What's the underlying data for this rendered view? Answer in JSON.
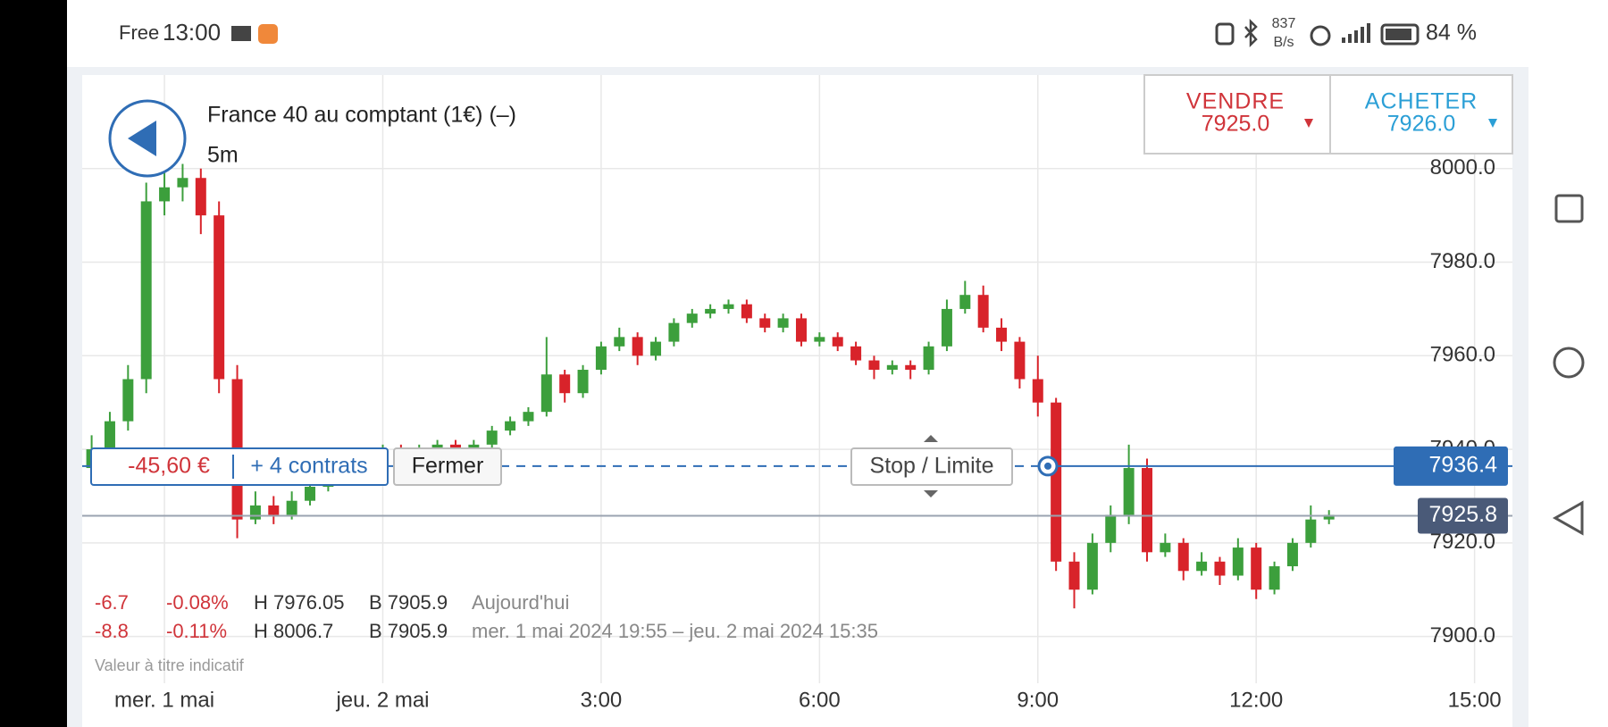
{
  "status_bar": {
    "carrier": "Free",
    "time": "13:00",
    "speed_value": "837",
    "speed_unit": "B/s",
    "battery": "84 %"
  },
  "trade_panel": {
    "sell_label": "VENDRE",
    "sell_price": "7925.0",
    "buy_label": "ACHETER",
    "buy_price": "7926.0"
  },
  "position": {
    "pnl": "-45,60 €",
    "contracts": "+ 4 contrats",
    "close_button": "Fermer",
    "stop_button": "Stop / Limite"
  },
  "summary": {
    "rows": [
      [
        "-6.7",
        "-0.08%",
        "H 7976.05",
        "B 7905.9",
        "Aujourd'hui"
      ],
      [
        "-8.8",
        "-0.11%",
        "H 8006.7",
        "B 7905.9",
        "mer. 1 mai 2024 19:55 – jeu. 2 mai 2024 15:35"
      ]
    ],
    "note": "Valeur à titre indicatif"
  },
  "chart_data": {
    "type": "candlestick",
    "title": "France 40 au comptant (1€) (–)",
    "subtitle": "5m",
    "up_color": "#3c9f3c",
    "down_color": "#d8232a",
    "grid": true,
    "xlim": [
      -4.13,
      15.52
    ],
    "xticks": [
      {
        "value": -3,
        "label": "mer. 1 mai"
      },
      {
        "value": 0,
        "label": "jeu. 2 mai"
      },
      {
        "value": 3,
        "label": "3:00"
      },
      {
        "value": 6,
        "label": "6:00"
      },
      {
        "value": 9,
        "label": "9:00"
      },
      {
        "value": 12,
        "label": "12:00"
      },
      {
        "value": 15,
        "label": "15:00"
      }
    ],
    "ylim": [
      7890,
      8020
    ],
    "yticks": [
      {
        "value": 7900,
        "label": "7900.0"
      },
      {
        "value": 7920,
        "label": "7920.0"
      },
      {
        "value": 7940,
        "label": "7940.0"
      },
      {
        "value": 7960,
        "label": "7960.0"
      },
      {
        "value": 7980,
        "label": "7980.0"
      },
      {
        "value": 8000,
        "label": "8000.0"
      }
    ],
    "position_level": 7936.4,
    "position_color": "#2f6db5",
    "current_price": 7925.8,
    "current_price_color": "#4a5a78",
    "x": [
      -4,
      -3.75,
      -3.5,
      -3.25,
      -3,
      -2.75,
      -2.5,
      -2.25,
      -2,
      -1.75,
      -1.5,
      -1.25,
      -1,
      -0.75,
      -0.5,
      -0.25,
      0,
      0.25,
      0.5,
      0.75,
      1,
      1.25,
      1.5,
      1.75,
      2,
      2.25,
      2.5,
      2.75,
      3,
      3.25,
      3.5,
      3.75,
      4,
      4.25,
      4.5,
      4.75,
      5,
      5.25,
      5.5,
      5.75,
      6,
      6.25,
      6.5,
      6.75,
      7,
      7.25,
      7.5,
      7.75,
      8,
      8.25,
      8.5,
      8.75,
      9,
      9.25,
      9.5,
      9.75,
      10,
      10.25,
      10.5,
      10.75,
      11,
      11.25,
      11.5,
      11.75,
      12,
      12.25,
      12.5,
      12.75,
      13
    ],
    "open": [
      7936,
      7940,
      7946,
      7955,
      7993,
      7996,
      7998,
      7990,
      7955,
      7925,
      7928,
      7926,
      7929,
      7932,
      7936,
      7938,
      7939,
      7940,
      7939,
      7940,
      7941,
      7940,
      7941,
      7944,
      7946,
      7948,
      7956,
      7952,
      7957,
      7962,
      7964,
      7960,
      7963,
      7967,
      7969,
      7970,
      7971,
      7968,
      7966,
      7968,
      7963,
      7964,
      7962,
      7959,
      7957,
      7958,
      7957,
      7962,
      7970,
      7973,
      7966,
      7963,
      7955,
      7950,
      7916,
      7910,
      7920,
      7926,
      7936,
      7918,
      7920,
      7914,
      7916,
      7913,
      7919,
      7910,
      7915,
      7920,
      7925
    ],
    "high": [
      7943,
      7948,
      7958,
      7997,
      8000,
      8001,
      8000,
      7993,
      7958,
      7931,
      7930,
      7931,
      7934,
      7938,
      7940,
      7940,
      7941,
      7941,
      7941,
      7942,
      7942,
      7942,
      7945,
      7947,
      7949,
      7964,
      7957,
      7958,
      7963,
      7966,
      7965,
      7964,
      7968,
      7970,
      7971,
      7972,
      7972,
      7969,
      7969,
      7969,
      7965,
      7965,
      7963,
      7960,
      7959,
      7959,
      7963,
      7972,
      7976,
      7975,
      7968,
      7964,
      7960,
      7951,
      7918,
      7922,
      7928,
      7941,
      7938,
      7922,
      7921,
      7918,
      7917,
      7921,
      7920,
      7916,
      7921,
      7928,
      7927
    ],
    "low": [
      7933,
      7938,
      7944,
      7952,
      7990,
      7993,
      7986,
      7952,
      7921,
      7924,
      7924,
      7925,
      7928,
      7931,
      7935,
      7937,
      7938,
      7938,
      7938,
      7939,
      7939,
      7939,
      7940,
      7943,
      7945,
      7947,
      7950,
      7951,
      7956,
      7961,
      7958,
      7959,
      7962,
      7966,
      7968,
      7969,
      7967,
      7965,
      7965,
      7962,
      7962,
      7961,
      7958,
      7955,
      7956,
      7955,
      7956,
      7961,
      7969,
      7965,
      7961,
      7953,
      7947,
      7914,
      7906,
      7909,
      7918,
      7924,
      7916,
      7917,
      7912,
      7913,
      7911,
      7912,
      7908,
      7909,
      7914,
      7919,
      7924
    ],
    "close": [
      7940,
      7946,
      7955,
      7993,
      7996,
      7998,
      7990,
      7955,
      7925,
      7928,
      7926,
      7929,
      7932,
      7936,
      7938,
      7939,
      7940,
      7939,
      7940,
      7941,
      7940,
      7941,
      7944,
      7946,
      7948,
      7956,
      7952,
      7957,
      7962,
      7964,
      7960,
      7963,
      7967,
      7969,
      7970,
      7971,
      7968,
      7966,
      7968,
      7963,
      7964,
      7962,
      7959,
      7957,
      7958,
      7957,
      7962,
      7970,
      7973,
      7966,
      7963,
      7955,
      7950,
      7916,
      7910,
      7920,
      7926,
      7936,
      7918,
      7920,
      7914,
      7916,
      7913,
      7919,
      7910,
      7915,
      7920,
      7925,
      7926
    ]
  }
}
